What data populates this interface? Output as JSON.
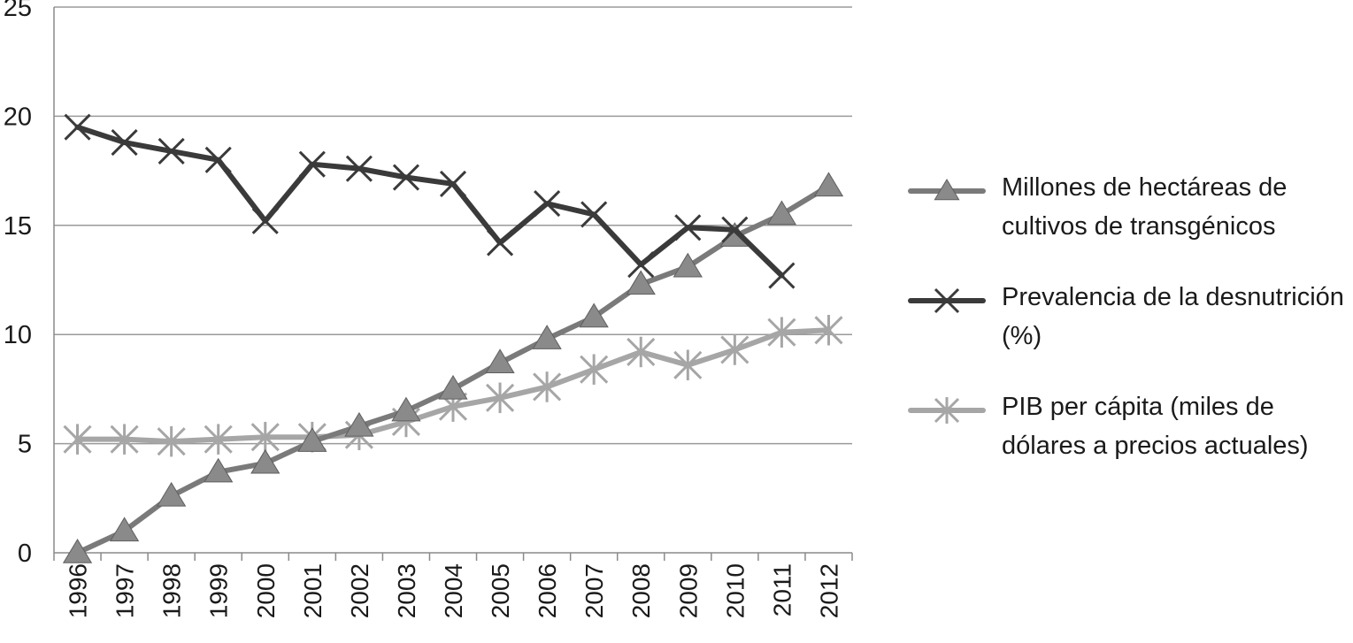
{
  "chart_data": {
    "type": "line",
    "title": "",
    "xlabel": "",
    "ylabel": "",
    "categories": [
      "1996",
      "1997",
      "1998",
      "1999",
      "2000",
      "2001",
      "2002",
      "2003",
      "2004",
      "2005",
      "2006",
      "2007",
      "2008",
      "2009",
      "2010",
      "2011",
      "2012"
    ],
    "y_ticks": [
      "0",
      "5",
      "10",
      "15",
      "20",
      "25"
    ],
    "ylim": [
      0,
      25
    ],
    "grid": "horizontal",
    "legend_position": "right",
    "series": [
      {
        "name": "Millones de hectáreas de cultivos de transgénicos",
        "marker": "triangle",
        "color": "#7a7a7a",
        "values": [
          0,
          1.0,
          2.6,
          3.7,
          4.1,
          5.1,
          5.8,
          6.5,
          7.5,
          8.7,
          9.8,
          10.8,
          12.3,
          13.1,
          14.5,
          15.5,
          16.8
        ]
      },
      {
        "name": "Prevalencia de la desnutrición (%)",
        "marker": "x",
        "color": "#3a3a3a",
        "values": [
          19.5,
          18.8,
          18.4,
          18.0,
          15.2,
          17.8,
          17.6,
          17.2,
          16.9,
          14.2,
          16.0,
          15.5,
          13.2,
          14.9,
          14.8,
          12.7,
          null
        ]
      },
      {
        "name": "PIB per cápita (miles de dólares a precios actuales)",
        "marker": "asterisk",
        "color": "#a6a6a6",
        "values": [
          5.2,
          5.2,
          5.1,
          5.2,
          5.3,
          5.3,
          5.4,
          6.0,
          6.7,
          7.1,
          7.6,
          8.4,
          9.2,
          8.6,
          9.3,
          10.1,
          10.2
        ]
      }
    ]
  },
  "legend": {
    "items": [
      {
        "label": "Millones de hectáreas de cultivos de transgénicos"
      },
      {
        "label": "Prevalencia de la desnutrición (%)"
      },
      {
        "label": "PIB per cápita (miles de dólares a precios actuales)"
      }
    ]
  }
}
